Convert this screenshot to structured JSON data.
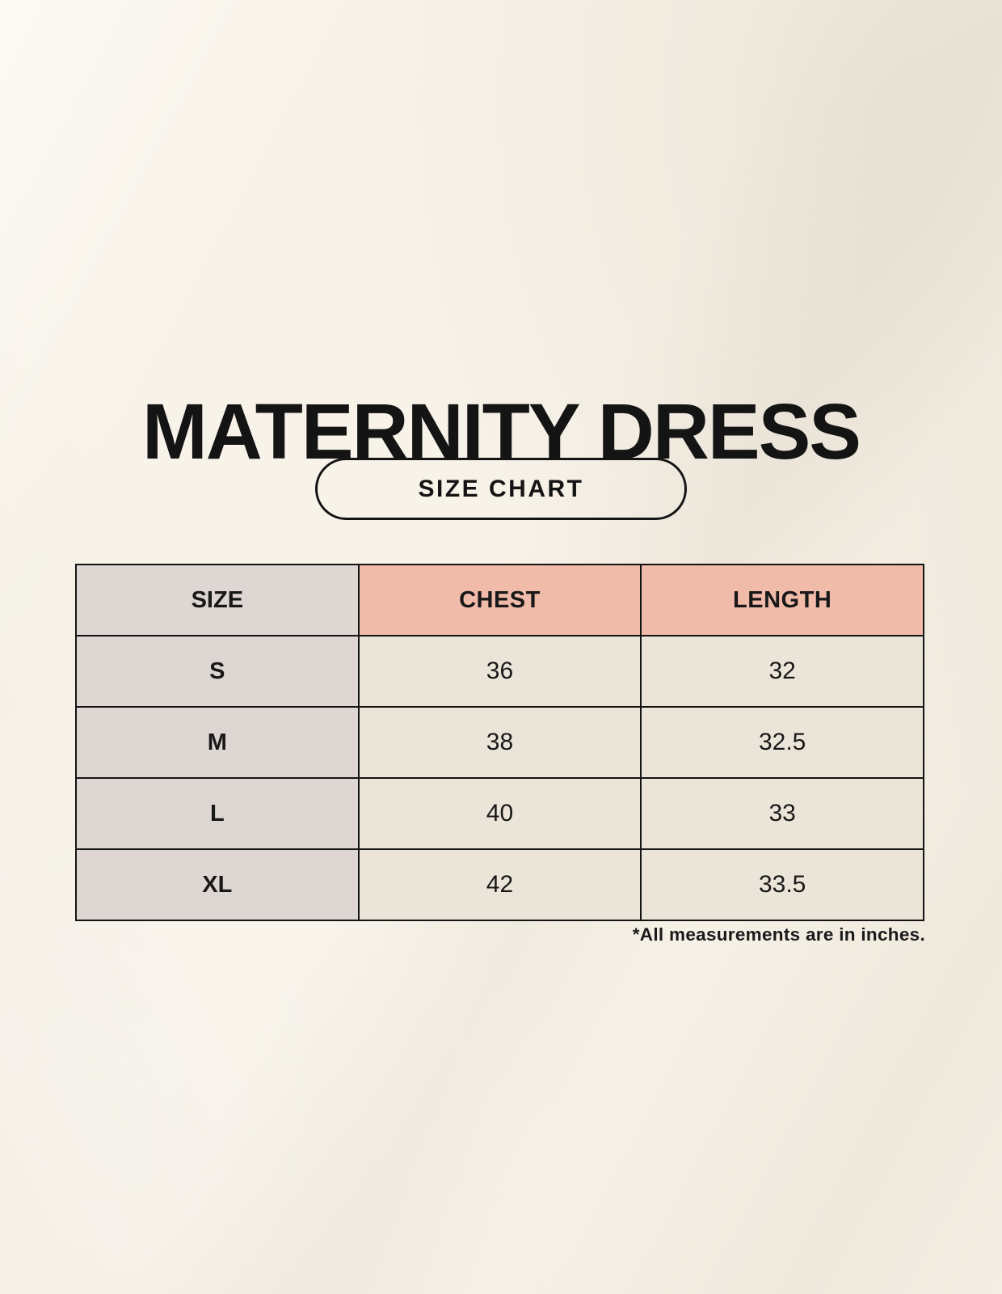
{
  "colors": {
    "background": "#f8f3e9",
    "table-pink": "#f1bbaa",
    "table-gray": "#ddd6d2",
    "table-cream": "#ebe5d9",
    "ink": "#141414"
  },
  "header": {
    "title": "MATERNITY DRESS",
    "badge": "SIZE CHART"
  },
  "table": {
    "headers": [
      "SIZE",
      "CHEST",
      "LENGTH"
    ],
    "rows": [
      {
        "size": "S",
        "chest": "36",
        "length": "32"
      },
      {
        "size": "M",
        "chest": "38",
        "length": "32.5"
      },
      {
        "size": "L",
        "chest": "40",
        "length": "33"
      },
      {
        "size": "XL",
        "chest": "42",
        "length": "33.5"
      }
    ]
  },
  "footnote": "*All measurements are in inches."
}
